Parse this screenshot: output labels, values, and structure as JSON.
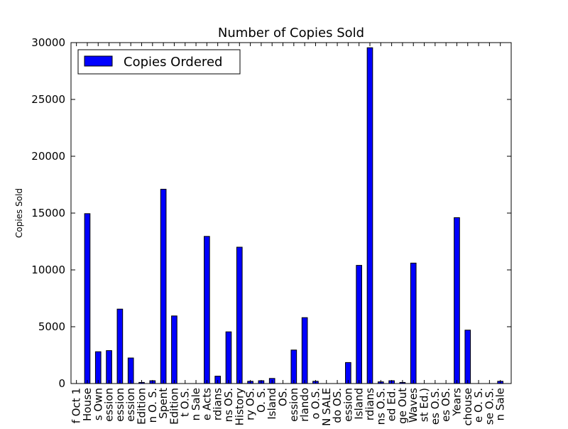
{
  "chart_data": {
    "type": "bar",
    "title": "Number of Copies Sold",
    "xlabel": "",
    "ylabel": "Copies Sold",
    "ylim": [
      0,
      30000
    ],
    "yticks": [
      0,
      5000,
      10000,
      15000,
      20000,
      25000,
      30000
    ],
    "grid": false,
    "legend": "top-left",
    "bar_color": "#0000ff",
    "categories": [
      "f Oct 1",
      "House",
      "s Own",
      "ession",
      "ession",
      "ession",
      "Edition",
      "n O. S.",
      "Spent",
      "Edition",
      "t O.S.",
      "n Sale",
      "e Acts",
      "rdians",
      "ns OS.",
      "History",
      "ry OS.",
      "O. S.",
      "Island",
      "OS.",
      "ession",
      "rlando",
      "o O.S.",
      "N SALE",
      "do OS.",
      "ession",
      "Island",
      "rdians",
      "ns O.S.",
      "ed Ed.",
      "ge Out",
      "Waves",
      "st Ed.)",
      "es O.S.",
      "es OS.",
      "Years",
      "chouse",
      "e O. S.",
      "se O.S.",
      "n Sale"
    ],
    "series": [
      {
        "name": "Copies Ordered",
        "values": [
          0,
          14950,
          2800,
          2900,
          6550,
          2250,
          100,
          250,
          17100,
          5950,
          0,
          0,
          12950,
          650,
          4550,
          12000,
          200,
          250,
          450,
          0,
          2950,
          5800,
          200,
          0,
          0,
          1850,
          10400,
          29550,
          150,
          250,
          100,
          10600,
          0,
          0,
          0,
          14600,
          4700,
          0,
          0,
          200
        ]
      }
    ]
  }
}
